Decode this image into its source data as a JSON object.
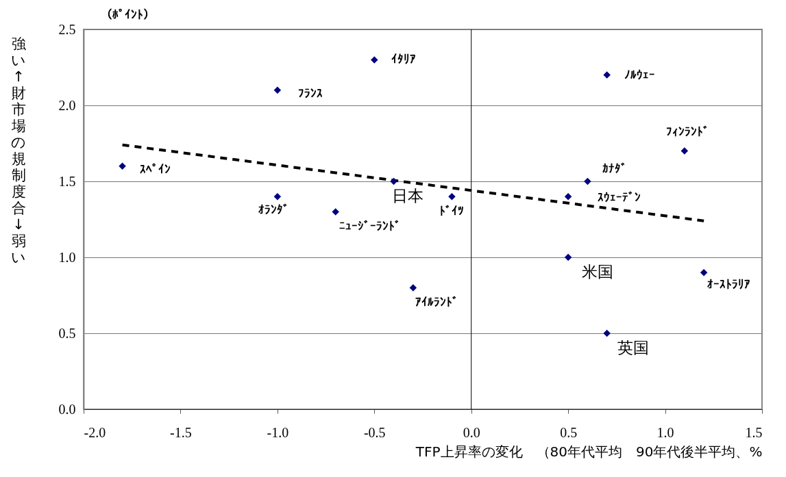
{
  "chart_data": {
    "type": "scatter",
    "xlabel": "TFP上昇率の変化　（80年代平均　90年代後半平均、%",
    "ylabel": "強い↑財市場の規制度合↓弱い",
    "annotations": [
      "（ﾎﾟｲﾝﾄ）",
      {
        "text": "ｽﾍﾟｲﾝ",
        "x": -1.8,
        "y": 1.6
      },
      {
        "text": "ﾌﾗﾝｽ",
        "x": -1.0,
        "y": 2.1
      },
      {
        "text": "ｲﾀﾘｱ",
        "x": -0.5,
        "y": 2.3
      },
      {
        "text": "ｵﾗﾝﾀﾞ",
        "x": -1.0,
        "y": 1.4
      },
      {
        "text": "ﾆｭｰｼﾞｰﾗﾝﾄﾞ",
        "x": -0.7,
        "y": 1.3
      },
      {
        "text": "日本",
        "x": -0.4,
        "y": 1.5
      },
      {
        "text": "ﾄﾞｲﾂ",
        "x": -0.1,
        "y": 1.4
      },
      {
        "text": "ｱｲﾙﾗﾝﾄﾞ",
        "x": -0.3,
        "y": 0.8
      },
      {
        "text": "ﾉﾙｳｪｰ",
        "x": 0.7,
        "y": 2.2
      },
      {
        "text": "ﾌｨﾝﾗﾝﾄﾞ",
        "x": 1.1,
        "y": 1.7
      },
      {
        "text": "ｶﾅﾀﾞ",
        "x": 0.6,
        "y": 1.5
      },
      {
        "text": "ｽｳｪｰﾃﾞﾝ",
        "x": 0.5,
        "y": 1.4
      },
      {
        "text": "米国",
        "x": 0.5,
        "y": 1.0
      },
      {
        "text": "ｵｰｽﾄﾗﾘｱ",
        "x": 1.2,
        "y": 0.9
      },
      {
        "text": "英国",
        "x": 0.7,
        "y": 0.5
      }
    ],
    "series": [
      {
        "color": "#000080",
        "marker": "diamond",
        "x": [
          -1.8,
          -1.0,
          -0.5,
          -1.0,
          -0.7,
          -0.4,
          -0.1,
          -0.3,
          0.7,
          1.1,
          0.6,
          0.5,
          0.5,
          1.2,
          0.7
        ],
        "values": [
          1.6,
          2.1,
          2.3,
          1.4,
          1.3,
          1.5,
          1.4,
          0.8,
          2.2,
          1.7,
          1.5,
          1.4,
          1.0,
          0.9,
          0.5
        ]
      },
      {
        "type": "line",
        "color": "#000000",
        "line_style": "dashed",
        "marker": "none",
        "x": [
          -1.8,
          1.2
        ],
        "values": [
          1.74,
          1.24
        ]
      }
    ],
    "ref_lines": [
      {
        "axis": "x",
        "value": 0,
        "color": "#000000"
      }
    ],
    "xlim": [
      -2.0,
      1.5
    ],
    "xticks": [
      {
        "value": -2.0,
        "label": "-2.0"
      },
      {
        "value": -1.5,
        "label": "-1.5"
      },
      {
        "value": -1.0,
        "label": "-1.0"
      },
      {
        "value": -0.5,
        "label": "-0.5"
      },
      {
        "value": 0.0,
        "label": "0.0"
      },
      {
        "value": 0.5,
        "label": "0.5"
      },
      {
        "value": 1.0,
        "label": "1.0"
      },
      {
        "value": 1.5,
        "label": "1.5"
      }
    ],
    "ylim": [
      0.0,
      2.5
    ],
    "yticks": [
      {
        "value": 0.0,
        "label": "0.0"
      },
      {
        "value": 0.5,
        "label": "0.5"
      },
      {
        "value": 1.0,
        "label": "1.0"
      },
      {
        "value": 1.5,
        "label": "1.5"
      },
      {
        "value": 2.0,
        "label": "2.0"
      },
      {
        "value": 2.5,
        "label": "2.5"
      }
    ],
    "grid": "y"
  }
}
